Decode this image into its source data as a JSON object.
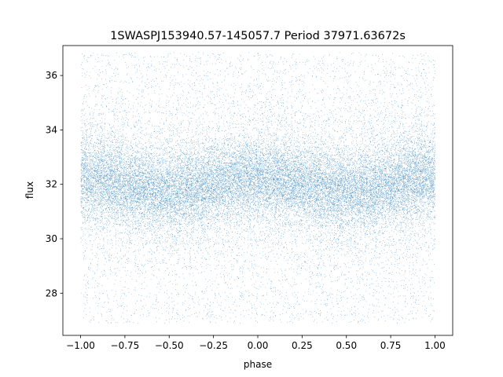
{
  "chart_data": {
    "type": "scatter",
    "title": "1SWASPJ153940.57-145057.7 Period 37971.63672s",
    "xlabel": "phase",
    "ylabel": "flux",
    "xlim": [
      -1.1,
      1.1
    ],
    "ylim": [
      26.45,
      37.1
    ],
    "x_ticks": [
      -1.0,
      -0.75,
      -0.5,
      -0.25,
      0.0,
      0.25,
      0.5,
      0.75,
      1.0
    ],
    "x_tick_labels": [
      "−1.00",
      "−0.75",
      "−0.50",
      "−0.25",
      "0.00",
      "0.25",
      "0.50",
      "0.75",
      "1.00"
    ],
    "y_ticks": [
      28,
      30,
      32,
      34,
      36
    ],
    "y_tick_labels": [
      "28",
      "30",
      "32",
      "34",
      "36"
    ],
    "grid": false,
    "legend": "none",
    "series_color": "#1f77b4",
    "data_summary": {
      "x_range": [
        -1.0,
        1.0
      ],
      "y_range": [
        26.9,
        36.85
      ],
      "central_flux": 32.0,
      "dense_band": [
        30.6,
        33.4
      ],
      "approx_points": 70000
    }
  }
}
